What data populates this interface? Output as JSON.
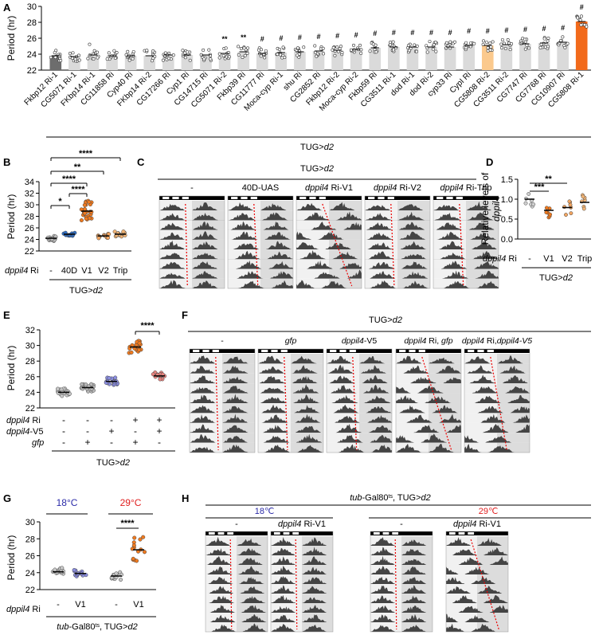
{
  "colors": {
    "dark": "#6d6d6d",
    "light": "#dadada",
    "pale": "#fbc98d",
    "orange": "#f26a1b",
    "blue": "#2b2ba8",
    "red": "#e02020",
    "violet": "#8b8ee0",
    "grey": "#c7c7c7"
  },
  "panelA": {
    "label": "A",
    "group_label": "TUG>",
    "group_label_italic": "d2",
    "chart_data": {
      "type": "bar",
      "title": "",
      "ylabel": "Period (hr)",
      "ylim": [
        22,
        30
      ],
      "yticks": [
        "22",
        "24",
        "26",
        "28",
        "30"
      ],
      "categories": [
        "Fkbp12 Ri-1",
        "CG5071 Ri-1",
        "FKbp14 Ri-1",
        "CG11858 Ri",
        "Cyp40 Ri",
        "FKbp14 Ri-2",
        "CG17266 Ri",
        "Cyp1 Ri",
        "CG14715 Ri",
        "CG5071 Ri-2",
        "Fkbp39 Ri",
        "CG11777 Ri",
        "Moca-cyp Ri-1",
        "shu Ri",
        "CG2852 Ri",
        "Fkbp12 Ri-2",
        "Moca-cyp Ri-2",
        "Fkbp59 Ri",
        "CG3511 Ri-1",
        "dod Ri-1",
        "dod Ri-2",
        "cyp33 Ri",
        "CypI Ri",
        "CG5808 Ri-2",
        "CG3511 Ri-2",
        "CG7747 Ri",
        "CG7768 Ri",
        "CG10907 Ri",
        "CG5808 Ri-1"
      ],
      "values": [
        23.8,
        23.7,
        23.9,
        23.8,
        23.8,
        23.8,
        23.9,
        23.9,
        23.9,
        24.1,
        24.3,
        24.1,
        24.2,
        24.3,
        24.4,
        24.5,
        24.6,
        24.8,
        24.9,
        24.9,
        24.9,
        24.9,
        25.1,
        25.1,
        25.2,
        25.3,
        25.4,
        25.5,
        28.1
      ],
      "annotations": [
        "",
        "",
        "",
        "",
        "",
        "",
        "",
        "",
        "",
        "**",
        "**",
        "#",
        "#",
        "#",
        "#",
        "#",
        "#",
        "#",
        "#",
        "#",
        "#",
        "#",
        "#",
        "#",
        "#",
        "#",
        "#",
        "#",
        "#"
      ]
    }
  },
  "panelB": {
    "label": "B",
    "group_label": "TUG>",
    "group_label_italic": "d2",
    "row_label": "dppil4 Ri",
    "chart_data": {
      "type": "scatter",
      "ylabel": "Period (hr)",
      "ylim": [
        22,
        34
      ],
      "yticks": [
        "22",
        "24",
        "26",
        "28",
        "30",
        "32",
        "34"
      ],
      "categories": [
        "-",
        "40D",
        "V1",
        "V2",
        "Trip"
      ],
      "means": [
        24.2,
        24.9,
        28.9,
        24.6,
        24.9
      ],
      "sig": [
        {
          "label": "*",
          "from": 0,
          "to": 1
        },
        {
          "label": "****",
          "from": 1,
          "to": 2
        },
        {
          "label": "****",
          "from": 0,
          "to": 2
        },
        {
          "label": "**",
          "from": 0,
          "to": 3
        },
        {
          "label": "****",
          "from": 0,
          "to": 4
        }
      ]
    }
  },
  "panelC": {
    "label": "C",
    "group_label": "TUG>",
    "group_label_italic": "d2",
    "headers": [
      {
        "pre": "",
        "it": "",
        "post": "-"
      },
      {
        "pre": "40D-UAS",
        "it": "",
        "post": ""
      },
      {
        "pre": "",
        "it": "dppil4",
        "post": " Ri-V1"
      },
      {
        "pre": "",
        "it": "dppil4",
        "post": " Ri-V2"
      },
      {
        "pre": "",
        "it": "dppil4",
        "post": " Ri-Trip"
      }
    ]
  },
  "panelD": {
    "label": "D",
    "group_label": "TUG>",
    "group_label_italic": "d2",
    "row_label": "dppil4 Ri",
    "chart_data": {
      "type": "scatter",
      "ylabel_line1": "Relative levels of",
      "ylabel_line2": "dppil4 mRNA",
      "ylim": [
        0.0,
        1.5
      ],
      "yticks": [
        "0.0",
        "0.5",
        "1.0",
        "1.5"
      ],
      "categories": [
        "-",
        "V1",
        "V2",
        "Trip"
      ],
      "means": [
        1.0,
        0.72,
        0.79,
        0.92
      ],
      "sig": [
        {
          "label": "***",
          "from": 0,
          "to": 1
        },
        {
          "label": "**",
          "from": 0,
          "to": 2
        }
      ]
    }
  },
  "panelE": {
    "label": "E",
    "group_label": "TUG>",
    "group_label_italic": "d2",
    "row_labels": [
      "dppil4 Ri",
      "dppil4-V5",
      "gfp"
    ],
    "row_values": [
      [
        "-",
        "-",
        "-",
        "+",
        "+"
      ],
      [
        "-",
        "-",
        "+",
        "-",
        "+"
      ],
      [
        "-",
        "+",
        "-",
        "+",
        "-"
      ]
    ],
    "chart_data": {
      "type": "scatter",
      "ylabel": "Period (hr)",
      "ylim": [
        22,
        32
      ],
      "yticks": [
        "22",
        "24",
        "26",
        "28",
        "30",
        "32"
      ],
      "means": [
        24.0,
        24.6,
        25.4,
        29.8,
        26.1
      ],
      "sig": [
        {
          "label": "****",
          "from": 3,
          "to": 4
        }
      ]
    }
  },
  "panelF": {
    "label": "F",
    "group_label": "TUG>",
    "group_label_italic": "d2",
    "headers": [
      {
        "pre": "",
        "it": "",
        "post": "-"
      },
      {
        "pre": "",
        "it": "gfp",
        "post": ""
      },
      {
        "pre": "",
        "it": "dppil4",
        "post": "-V5"
      },
      {
        "pre": "",
        "it": "dppil4",
        "post": " Ri, "
      },
      {
        "pre": "",
        "it": "dppil4",
        "post": " Ri,"
      }
    ],
    "header_suffix": [
      "",
      "",
      "",
      "gfp",
      "dppil4-V5"
    ]
  },
  "panelG": {
    "label": "G",
    "temp_low": "18°C",
    "temp_high": "29°C",
    "row_label": "dppil4 Ri",
    "group_label_pre": "tub",
    "group_label_mid": "-Gal80",
    "group_label_sup": "ts",
    "group_label_post": ", TUG>",
    "group_label_italic": "d2",
    "chart_data": {
      "type": "scatter",
      "ylabel": "Period (hr)",
      "ylim": [
        22,
        30
      ],
      "yticks": [
        "22",
        "24",
        "26",
        "28",
        "30"
      ],
      "categories": [
        "-",
        "V1",
        "-",
        "V1"
      ],
      "means": [
        24.1,
        23.9,
        23.6,
        26.7
      ],
      "sig": [
        {
          "label": "****",
          "from": 2,
          "to": 3
        }
      ]
    }
  },
  "panelH": {
    "label": "H",
    "title_pre": "tub",
    "title_mid": "-Gal80",
    "title_sup": "ts",
    "title_post": ", TUG>",
    "title_italic": "d2",
    "temp_low": "18℃",
    "temp_high": "29℃",
    "headers": [
      {
        "pre": "",
        "it": "",
        "post": "-"
      },
      {
        "pre": "",
        "it": "dppil4",
        "post": " Ri-V1"
      },
      {
        "pre": "",
        "it": "",
        "post": "-"
      },
      {
        "pre": "",
        "it": "dppil4",
        "post": " Ri-V1"
      }
    ]
  }
}
